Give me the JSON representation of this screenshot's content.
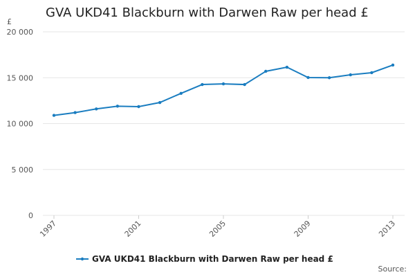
{
  "chart_data": {
    "type": "line",
    "title": "GVA UKD41 Blackburn with Darwen Raw per head £",
    "y_unit": "£",
    "source": "Source:",
    "x": [
      1997,
      1998,
      1999,
      2000,
      2001,
      2002,
      2003,
      2004,
      2005,
      2006,
      2007,
      2008,
      2009,
      2010,
      2011,
      2012,
      2013
    ],
    "series": [
      {
        "name": "GVA UKD41 Blackburn with Darwen Raw per head £",
        "color": "#1a7dc0",
        "values": [
          10900,
          11200,
          11600,
          11900,
          11850,
          12300,
          13300,
          14260,
          14330,
          14260,
          15700,
          16150,
          15020,
          15000,
          15320,
          15550,
          16380
        ]
      }
    ],
    "xlim": [
      1997,
      2013
    ],
    "xticks": [
      1997,
      2001,
      2005,
      2009,
      2013
    ],
    "ylim": [
      0,
      20000
    ],
    "yticks": [
      0,
      {
        "value": 5000,
        "label": "5 000"
      },
      {
        "value": 10000,
        "label": "10 000"
      },
      {
        "value": 15000,
        "label": "15 000"
      },
      {
        "value": 20000,
        "label": "20 000"
      }
    ],
    "grid": true
  }
}
